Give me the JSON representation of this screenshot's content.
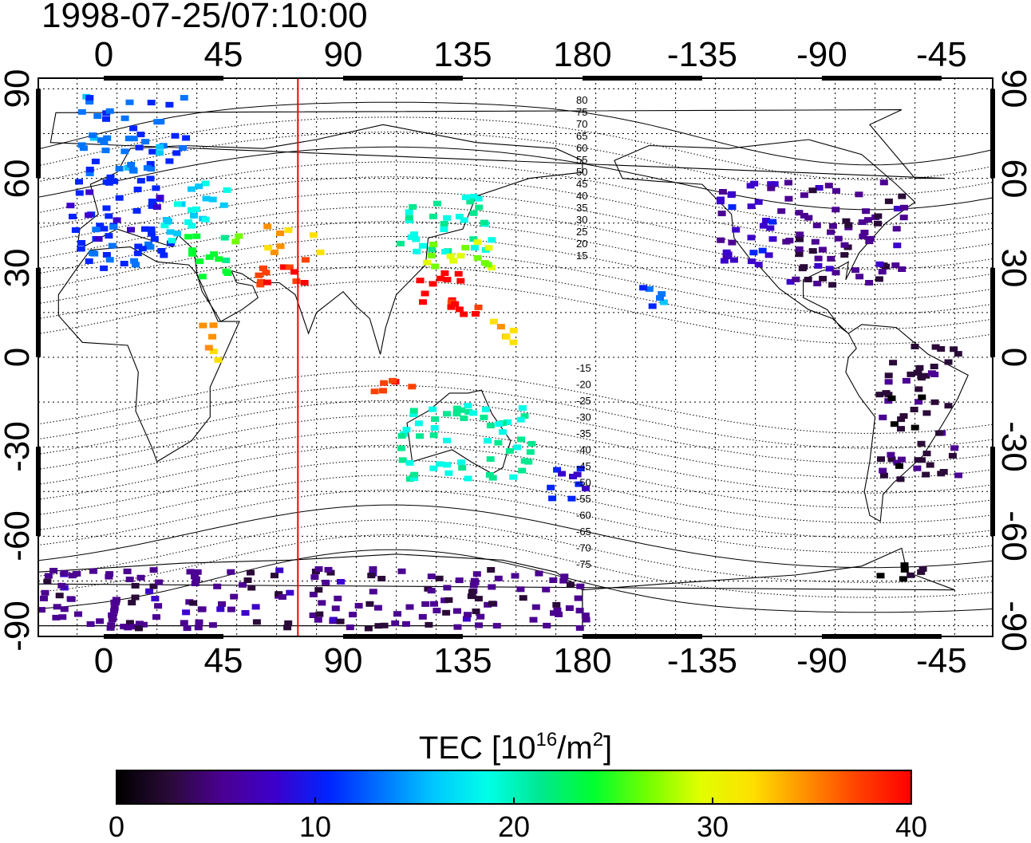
{
  "title": "1998-07-25/07:10:00",
  "lon_ticks": [
    "0",
    "45",
    "90",
    "135",
    "180",
    "-135",
    "-90",
    "-45"
  ],
  "lat_ticks": [
    "90",
    "60",
    "30",
    "0",
    "-30",
    "-60",
    "-90"
  ],
  "mag_lat_labels": [
    "80",
    "75",
    "70",
    "65",
    "60",
    "55",
    "50",
    "45",
    "40",
    "35",
    "30",
    "25",
    "20",
    "15",
    "-15",
    "-20",
    "-25",
    "-30",
    "-35",
    "-40",
    "-45",
    "-50",
    "-55",
    "-60",
    "-65",
    "-70",
    "-75"
  ],
  "colorbar": {
    "title_prefix": "TEC  [10",
    "title_sup1": "16",
    "title_mid": "/m",
    "title_sup2": "2",
    "title_suffix": "]",
    "ticks": [
      "0",
      "10",
      "20",
      "30",
      "40"
    ],
    "min": 0,
    "max": 40,
    "colors": [
      "#000000",
      "#2a0a38",
      "#4b0092",
      "#3c00cc",
      "#0024ff",
      "#0074ff",
      "#00c8ff",
      "#00ffe8",
      "#00e890",
      "#00ff30",
      "#70ff00",
      "#e0ff00",
      "#ffe000",
      "#ff9000",
      "#ff4000",
      "#ff0000"
    ]
  },
  "marker": {
    "longitude": 73
  },
  "tec_regions": [
    {
      "region": "europe-north",
      "lon": [
        -10,
        30
      ],
      "lat": [
        62,
        90
      ],
      "tec": 13
    },
    {
      "region": "europe",
      "lon": [
        -15,
        20
      ],
      "lat": [
        40,
        62
      ],
      "tec": 10
    },
    {
      "region": "europe-south",
      "lon": [
        -10,
        25
      ],
      "lat": [
        30,
        45
      ],
      "tec": 12
    },
    {
      "region": "western-russia",
      "lon": [
        20,
        45
      ],
      "lat": [
        40,
        60
      ],
      "tec": 18
    },
    {
      "region": "middle-east",
      "lon": [
        30,
        50
      ],
      "lat": [
        28,
        45
      ],
      "tec": 24
    },
    {
      "region": "caspian",
      "lon": [
        60,
        80
      ],
      "lat": [
        36,
        45
      ],
      "tec": 33
    },
    {
      "region": "iran-pakistan",
      "lon": [
        55,
        75
      ],
      "lat": [
        22,
        35
      ],
      "tec": 38
    },
    {
      "region": "east-africa",
      "lon": [
        33,
        42
      ],
      "lat": [
        0,
        14
      ],
      "tec": 33
    },
    {
      "region": "china-north",
      "lon": [
        110,
        145
      ],
      "lat": [
        35,
        55
      ],
      "tec": 20
    },
    {
      "region": "japan",
      "lon": [
        120,
        145
      ],
      "lat": [
        30,
        42
      ],
      "tec": 28
    },
    {
      "region": "south-china",
      "lon": [
        115,
        140
      ],
      "lat": [
        15,
        30
      ],
      "tec": 40
    },
    {
      "region": "pacific-tropics",
      "lon": [
        145,
        155
      ],
      "lat": [
        5,
        15
      ],
      "tec": 34
    },
    {
      "region": "indonesia",
      "lon": [
        100,
        115
      ],
      "lat": [
        -12,
        -5
      ],
      "tec": 39
    },
    {
      "region": "australia-north",
      "lon": [
        110,
        160
      ],
      "lat": [
        -40,
        -15
      ],
      "tec": 20
    },
    {
      "region": "new-zealand",
      "lon": [
        165,
        180
      ],
      "lat": [
        -50,
        -35
      ],
      "tec": 10
    },
    {
      "region": "hawaii",
      "lon": [
        -160,
        -150
      ],
      "lat": [
        18,
        25
      ],
      "tec": 13
    },
    {
      "region": "north-america-west",
      "lon": [
        -130,
        -105
      ],
      "lat": [
        30,
        60
      ],
      "tec": 8
    },
    {
      "region": "north-america-east",
      "lon": [
        -105,
        -60
      ],
      "lat": [
        25,
        60
      ],
      "tec": 5
    },
    {
      "region": "south-america",
      "lon": [
        -70,
        -40
      ],
      "lat": [
        -40,
        5
      ],
      "tec": 3
    },
    {
      "region": "antarctic-peninsula",
      "lon": [
        -70,
        -50
      ],
      "lat": [
        -75,
        -67
      ],
      "tec": 1
    },
    {
      "region": "antarctica",
      "lon": [
        -25,
        180
      ],
      "lat": [
        -90,
        -70
      ],
      "tec": 5
    }
  ],
  "colors": {
    "marker_line": "#ff0000",
    "grid": "#000000"
  }
}
